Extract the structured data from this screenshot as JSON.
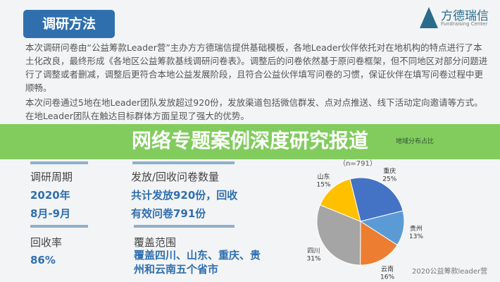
{
  "section_title": "调研方法",
  "logo": {
    "name": "方德瑞信",
    "subtitle": "Fundraising Center"
  },
  "paragraphs": [
    "本次调研问卷由“公益筹款Leader营”主办方方德瑞信提供基础模板，各地Leader伙伴依托对在地机构的特点进行了本土化改良，最终形成《各地区公益筹款基线调研问卷表》。调整后的问卷依然基于原问卷框架，但不同地区对部分问题进行了调整或者删减，调整后更符合本地公益发展阶段，且符合公益伙伴填写问卷的习惯，保证伙伴在填写问卷过程中更顺畅。",
    "本次问卷通过5地在地Leader团队发放超过920份，发放渠道包括微信群发、点对点推送、线下活动定向邀请等方式。在地Leader团队在触达目标群体方面呈现了强大的优势。"
  ],
  "banner": "网络专题案例深度研究报道",
  "stats": [
    {
      "label": "调研周期",
      "values": [
        "2020年",
        "8月-9月"
      ]
    },
    {
      "label": "发放/回收问卷数量",
      "values": [
        "共计发放920份，回收",
        "有效问卷791份"
      ]
    },
    {
      "label": "回收率",
      "values": [
        "86%"
      ]
    },
    {
      "label": "覆盖范围",
      "values": [
        "覆盖四川、山东、重庆、贵",
        "州和云南五个省市"
      ]
    }
  ],
  "chart_data": {
    "type": "pie",
    "title": "地域分布占比",
    "subtitle": "（n=791）",
    "categories": [
      "重庆",
      "贵州",
      "云南",
      "四川",
      "山东"
    ],
    "values": [
      25,
      13,
      16,
      31,
      15
    ],
    "labels": [
      "25%",
      "13%",
      "16%",
      "31%",
      "15%"
    ],
    "colors": [
      "#4472c4",
      "#5b9bd5",
      "#ed7d31",
      "#a5a5a5",
      "#ffc000"
    ]
  },
  "footer": "2020公益筹款leader营"
}
